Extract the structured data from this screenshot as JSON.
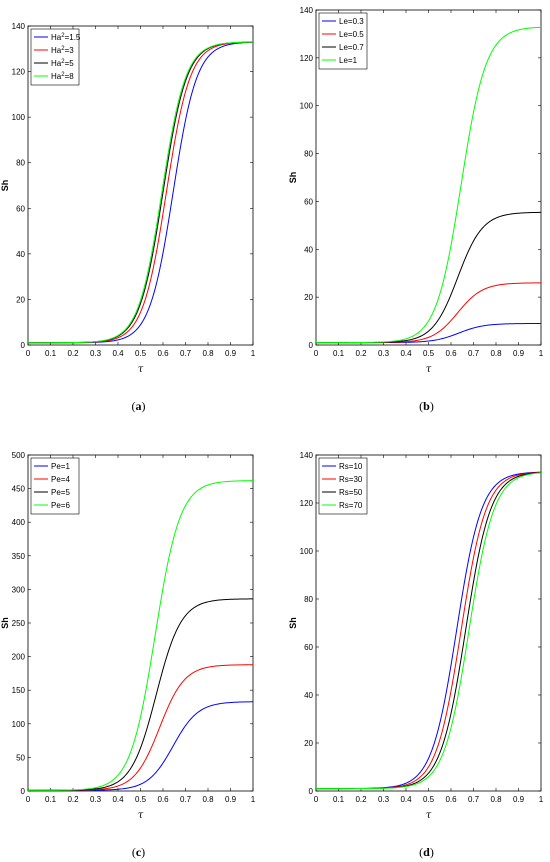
{
  "chart_data": [
    {
      "type": "line",
      "panel": "a",
      "caption": "(a)",
      "xlabel": "τ",
      "ylabel": "Sh",
      "xlim": [
        0,
        1
      ],
      "ylim": [
        0,
        140
      ],
      "xticks": [
        "0",
        "0.1",
        "0.2",
        "0.3",
        "0.4",
        "0.5",
        "0.6",
        "0.7",
        "0.8",
        "0.9",
        "1"
      ],
      "yticks": [
        "0",
        "20",
        "40",
        "60",
        "80",
        "100",
        "120",
        "140"
      ],
      "legend_position": "top-left",
      "series": [
        {
          "legend_pre": "Ha",
          "legend_sup": "2",
          "legend_post": "=1.5",
          "color": "#0000ff",
          "base": 1,
          "top": 133,
          "mid": 0.645,
          "k": 19
        },
        {
          "legend_pre": "Ha",
          "legend_sup": "2",
          "legend_post": "=3",
          "color": "#ff0000",
          "base": 1,
          "top": 133,
          "mid": 0.615,
          "k": 19
        },
        {
          "legend_pre": "Ha",
          "legend_sup": "2",
          "legend_post": "=5",
          "color": "#000000",
          "base": 1,
          "top": 133,
          "mid": 0.6,
          "k": 19
        },
        {
          "legend_pre": "Ha",
          "legend_sup": "2",
          "legend_post": "=8",
          "color": "#00ff00",
          "base": 1,
          "top": 133,
          "mid": 0.595,
          "k": 19
        }
      ]
    },
    {
      "type": "line",
      "panel": "b",
      "caption": "(b)",
      "xlabel": "τ",
      "ylabel": "Sh",
      "xlim": [
        0,
        1
      ],
      "ylim": [
        0,
        140
      ],
      "xticks": [
        "0",
        "0.1",
        "0.2",
        "0.3",
        "0.4",
        "0.5",
        "0.6",
        "0.7",
        "0.8",
        "0.9",
        "1"
      ],
      "yticks": [
        "0",
        "20",
        "40",
        "60",
        "80",
        "100",
        "120",
        "140"
      ],
      "legend_position": "top-left",
      "series": [
        {
          "legend_pre": "Le=0.3",
          "legend_sup": "",
          "legend_post": "",
          "color": "#0000ff",
          "base": 1,
          "top": 9,
          "mid": 0.635,
          "k": 18
        },
        {
          "legend_pre": "Le=0.5",
          "legend_sup": "",
          "legend_post": "",
          "color": "#ff0000",
          "base": 1,
          "top": 26,
          "mid": 0.63,
          "k": 18
        },
        {
          "legend_pre": "Le=0.7",
          "legend_sup": "",
          "legend_post": "",
          "color": "#000000",
          "base": 1,
          "top": 55.5,
          "mid": 0.63,
          "k": 18
        },
        {
          "legend_pre": "Le=1",
          "legend_sup": "",
          "legend_post": "",
          "color": "#00ff00",
          "base": 1,
          "top": 133,
          "mid": 0.645,
          "k": 18
        }
      ]
    },
    {
      "type": "line",
      "panel": "c",
      "caption": "(c)",
      "xlabel": "τ",
      "ylabel": "Sh",
      "xlim": [
        0,
        1
      ],
      "ylim": [
        0,
        500
      ],
      "xticks": [
        "0",
        "0.1",
        "0.2",
        "0.3",
        "0.4",
        "0.5",
        "0.6",
        "0.7",
        "0.8",
        "0.9",
        "1"
      ],
      "yticks": [
        "0",
        "50",
        "100",
        "150",
        "200",
        "250",
        "300",
        "350",
        "400",
        "450",
        "500"
      ],
      "legend_position": "top-left",
      "series": [
        {
          "legend_pre": "Pe=1",
          "legend_sup": "",
          "legend_post": "",
          "color": "#0000ff",
          "base": 1,
          "top": 133,
          "mid": 0.645,
          "k": 18
        },
        {
          "legend_pre": "Pe=4",
          "legend_sup": "",
          "legend_post": "",
          "color": "#ff0000",
          "base": 1,
          "top": 188,
          "mid": 0.585,
          "k": 18
        },
        {
          "legend_pre": "Pe=5",
          "legend_sup": "",
          "legend_post": "",
          "color": "#000000",
          "base": 1,
          "top": 286,
          "mid": 0.57,
          "k": 18
        },
        {
          "legend_pre": "Pe=6",
          "legend_sup": "",
          "legend_post": "",
          "color": "#00ff00",
          "base": 1,
          "top": 462,
          "mid": 0.565,
          "k": 18
        }
      ]
    },
    {
      "type": "line",
      "panel": "d",
      "caption": "(d)",
      "xlabel": "τ",
      "ylabel": "Sh",
      "xlim": [
        0,
        1
      ],
      "ylim": [
        0,
        140
      ],
      "xticks": [
        "0",
        "0.1",
        "0.2",
        "0.3",
        "0.4",
        "0.5",
        "0.6",
        "0.7",
        "0.8",
        "0.9",
        "1"
      ],
      "yticks": [
        "0",
        "20",
        "40",
        "60",
        "80",
        "100",
        "120",
        "140"
      ],
      "legend_position": "top-left",
      "series": [
        {
          "legend_pre": "Rs=10",
          "legend_sup": "",
          "legend_post": "",
          "color": "#0000ff",
          "base": 1,
          "top": 133,
          "mid": 0.625,
          "k": 18
        },
        {
          "legend_pre": "Rs=30",
          "legend_sup": "",
          "legend_post": "",
          "color": "#ff0000",
          "base": 1,
          "top": 133,
          "mid": 0.645,
          "k": 18
        },
        {
          "legend_pre": "Rs=50",
          "legend_sup": "",
          "legend_post": "",
          "color": "#000000",
          "base": 1,
          "top": 133,
          "mid": 0.665,
          "k": 18
        },
        {
          "legend_pre": "Rs=70",
          "legend_sup": "",
          "legend_post": "",
          "color": "#00ff00",
          "base": 1,
          "top": 133,
          "mid": 0.68,
          "k": 18
        }
      ]
    }
  ]
}
